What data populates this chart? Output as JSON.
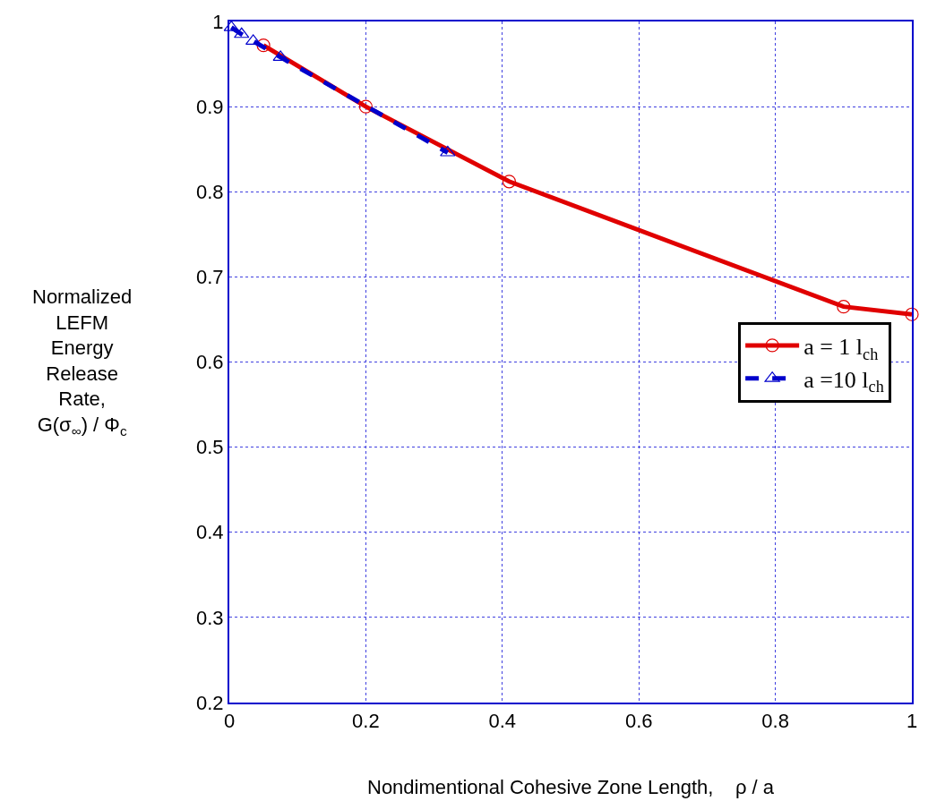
{
  "chart_data": {
    "type": "line",
    "xlabel": "Nondimentional Cohesive Zone Length,    ρ / a",
    "ylabel": "Normalized\nLEFM\nEnergy\nRelease\nRate,\nG(σ$_{∞}$) / Φ$_{c}$",
    "xlim": [
      0,
      1
    ],
    "xticks": [
      0,
      0.2,
      0.4,
      0.6,
      0.8,
      1
    ],
    "ylim": [
      0.2,
      1
    ],
    "yticks": [
      0.2,
      0.3,
      0.4,
      0.5,
      0.6,
      0.7,
      0.8,
      0.9,
      1
    ],
    "grid": true,
    "legend": "right",
    "series": [
      {
        "name": "a = 1 l$_{ch}$",
        "color": "#e00000",
        "marker": "circle",
        "line_style": "solid",
        "x": [
          0.05,
          0.2,
          0.41,
          0.9,
          1.0
        ],
        "values": [
          0.972,
          0.9,
          0.812,
          0.665,
          0.656
        ]
      },
      {
        "name": "a =10 l$_{ch}$",
        "color": "#0000cc",
        "marker": "triangle",
        "line_style": "dashed",
        "x": [
          0.003,
          0.018,
          0.035,
          0.075,
          0.32
        ],
        "values": [
          0.993,
          0.985,
          0.977,
          0.958,
          0.846
        ]
      }
    ]
  }
}
